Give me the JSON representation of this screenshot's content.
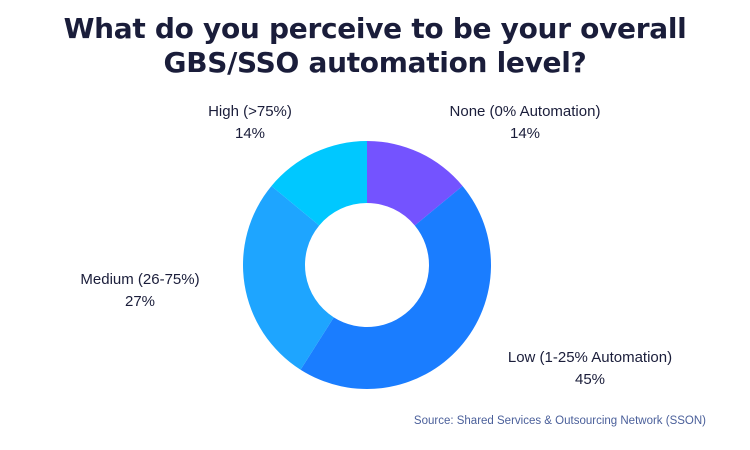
{
  "title": {
    "line1": "What do you perceive to be your overall",
    "line2": "GBS/SSO automation level?"
  },
  "chart_data": {
    "type": "pie",
    "donut": true,
    "categories": [
      "None (0% Automation)",
      "Low (1-25% Automation)",
      "Medium (26-75%)",
      "High (>75%)"
    ],
    "values": [
      14,
      45,
      27,
      14
    ],
    "value_labels": [
      "14%",
      "45%",
      "27%",
      "14%"
    ],
    "colors": [
      "#7453ff",
      "#1a7dff",
      "#1ea5ff",
      "#00c8ff"
    ],
    "title": "What do you perceive to be your overall GBS/SSO automation level?"
  },
  "source": "Source: Shared Services & Outsourcing Network (SSON)"
}
